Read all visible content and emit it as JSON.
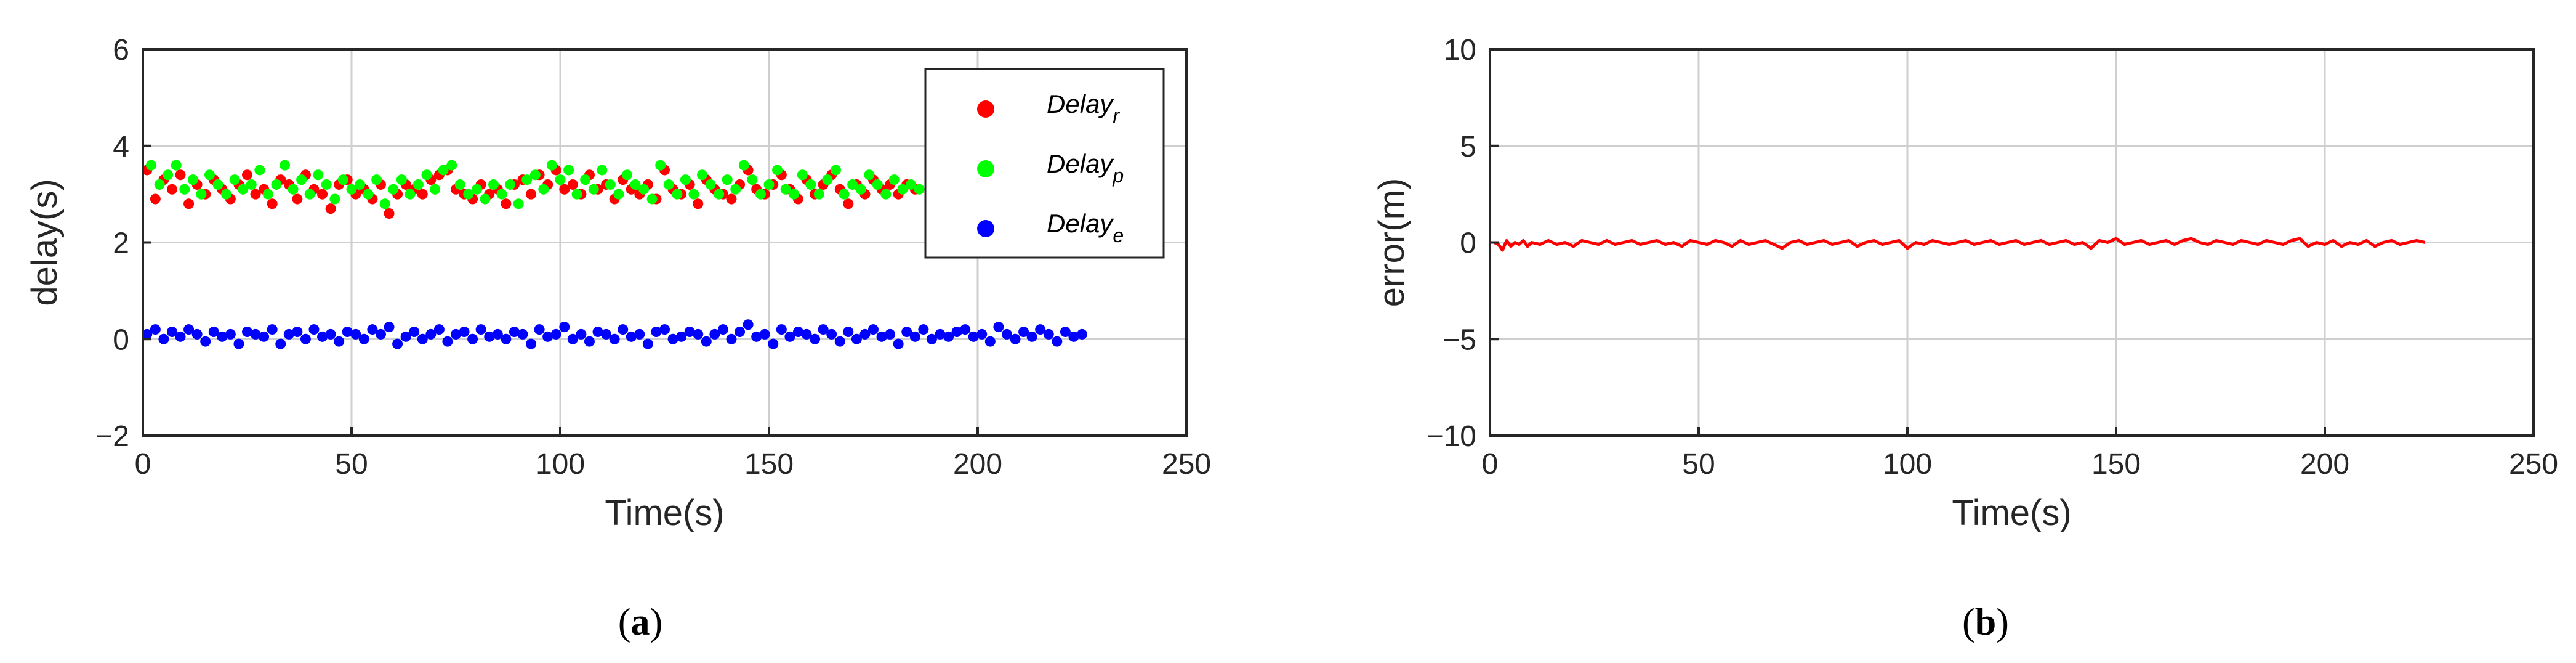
{
  "chart_data": [
    {
      "panel": "a",
      "type": "scatter",
      "xlabel": "Time(s)",
      "ylabel": "delay(s)",
      "xlim": [
        0,
        250
      ],
      "ylim": [
        -2,
        6
      ],
      "xticks": [
        0,
        50,
        100,
        150,
        200,
        250
      ],
      "yticks": [
        -2,
        0,
        2,
        4,
        6
      ],
      "grid": true,
      "legend": "top-right",
      "series": [
        {
          "name": "Delay",
          "subscript": "r",
          "color": "#ff0000",
          "x": [
            1,
            3,
            5,
            7,
            9,
            11,
            13,
            15,
            17,
            19,
            21,
            23,
            25,
            27,
            29,
            31,
            33,
            35,
            37,
            39,
            41,
            43,
            45,
            47,
            49,
            51,
            53,
            55,
            57,
            59,
            61,
            63,
            65,
            67,
            69,
            71,
            73,
            75,
            77,
            79,
            81,
            83,
            85,
            87,
            89,
            91,
            93,
            95,
            97,
            99,
            101,
            103,
            105,
            107,
            109,
            111,
            113,
            115,
            117,
            119,
            121,
            123,
            125,
            127,
            129,
            131,
            133,
            135,
            137,
            139,
            141,
            143,
            145,
            147,
            149,
            151,
            153,
            155,
            157,
            159,
            161,
            163,
            165,
            167,
            169,
            171,
            173,
            175,
            177,
            179,
            181,
            183,
            185
          ],
          "y": [
            3.5,
            2.9,
            3.3,
            3.1,
            3.4,
            2.8,
            3.2,
            3.0,
            3.3,
            3.1,
            2.9,
            3.2,
            3.4,
            3.0,
            3.1,
            2.8,
            3.3,
            3.2,
            2.9,
            3.4,
            3.1,
            3.0,
            2.7,
            3.2,
            3.3,
            3.0,
            3.1,
            2.9,
            3.2,
            2.6,
            3.0,
            3.2,
            3.1,
            3.0,
            3.3,
            3.4,
            3.5,
            3.1,
            3.0,
            2.9,
            3.2,
            3.0,
            3.1,
            2.8,
            3.2,
            3.3,
            3.0,
            3.4,
            3.2,
            3.5,
            3.1,
            3.2,
            3.0,
            3.4,
            3.1,
            3.2,
            2.9,
            3.3,
            3.1,
            3.0,
            3.2,
            2.9,
            3.5,
            3.1,
            3.0,
            3.2,
            2.8,
            3.3,
            3.1,
            3.0,
            2.9,
            3.2,
            3.5,
            3.1,
            3.0,
            3.2,
            3.4,
            3.1,
            2.9,
            3.3,
            3.0,
            3.2,
            3.4,
            3.1,
            2.8,
            3.2,
            3.0,
            3.3,
            3.1,
            3.2,
            3.0,
            3.2,
            3.1
          ]
        },
        {
          "name": "Delay",
          "subscript": "p",
          "color": "#00ff00",
          "x": [
            2,
            4,
            6,
            8,
            10,
            12,
            14,
            16,
            18,
            20,
            22,
            24,
            26,
            28,
            30,
            32,
            34,
            36,
            38,
            40,
            42,
            44,
            46,
            48,
            50,
            52,
            54,
            56,
            58,
            60,
            62,
            64,
            66,
            68,
            70,
            72,
            74,
            76,
            78,
            80,
            82,
            84,
            86,
            88,
            90,
            92,
            94,
            96,
            98,
            100,
            102,
            104,
            106,
            108,
            110,
            112,
            114,
            116,
            118,
            120,
            122,
            124,
            126,
            128,
            130,
            132,
            134,
            136,
            138,
            140,
            142,
            144,
            146,
            148,
            150,
            152,
            154,
            156,
            158,
            160,
            162,
            164,
            166,
            168,
            170,
            172,
            174,
            176,
            178,
            180,
            182,
            184,
            186
          ],
          "y": [
            3.6,
            3.2,
            3.4,
            3.6,
            3.1,
            3.3,
            3.0,
            3.4,
            3.2,
            3.0,
            3.3,
            3.1,
            3.2,
            3.5,
            3.0,
            3.2,
            3.6,
            3.1,
            3.3,
            3.0,
            3.4,
            3.2,
            2.9,
            3.3,
            3.1,
            3.2,
            3.0,
            3.3,
            2.8,
            3.1,
            3.3,
            3.0,
            3.2,
            3.4,
            3.1,
            3.5,
            3.6,
            3.2,
            3.0,
            3.1,
            2.9,
            3.2,
            3.0,
            3.2,
            2.8,
            3.3,
            3.4,
            3.1,
            3.6,
            3.3,
            3.5,
            3.0,
            3.3,
            3.1,
            3.5,
            3.2,
            3.0,
            3.4,
            3.2,
            3.1,
            2.9,
            3.6,
            3.2,
            3.0,
            3.3,
            3.0,
            3.4,
            3.2,
            3.0,
            3.3,
            3.1,
            3.6,
            3.3,
            3.0,
            3.2,
            3.5,
            3.1,
            3.0,
            3.4,
            3.2,
            3.0,
            3.3,
            3.5,
            3.0,
            3.2,
            3.1,
            3.4,
            3.2,
            3.0,
            3.3,
            3.1,
            3.2,
            3.1
          ]
        },
        {
          "name": "Delay",
          "subscript": "e",
          "color": "#0000ff",
          "x": [
            1,
            3,
            5,
            7,
            9,
            11,
            13,
            15,
            17,
            19,
            21,
            23,
            25,
            27,
            29,
            31,
            33,
            35,
            37,
            39,
            41,
            43,
            45,
            47,
            49,
            51,
            53,
            55,
            57,
            59,
            61,
            63,
            65,
            67,
            69,
            71,
            73,
            75,
            77,
            79,
            81,
            83,
            85,
            87,
            89,
            91,
            93,
            95,
            97,
            99,
            101,
            103,
            105,
            107,
            109,
            111,
            113,
            115,
            117,
            119,
            121,
            123,
            125,
            127,
            129,
            131,
            133,
            135,
            137,
            139,
            141,
            143,
            145,
            147,
            149,
            151,
            153,
            155,
            157,
            159,
            161,
            163,
            165,
            167,
            169,
            171,
            173,
            175,
            177,
            179,
            181,
            183,
            185,
            187,
            189,
            191,
            193,
            195,
            197,
            199,
            201,
            203,
            205,
            207,
            209,
            211,
            213,
            215,
            217,
            219,
            221,
            223,
            225
          ],
          "y": [
            0.1,
            0.2,
            0.0,
            0.15,
            0.05,
            0.2,
            0.1,
            -0.05,
            0.15,
            0.05,
            0.1,
            -0.1,
            0.15,
            0.1,
            0.05,
            0.2,
            -0.1,
            0.1,
            0.15,
            0.0,
            0.2,
            0.05,
            0.1,
            -0.05,
            0.15,
            0.1,
            0.0,
            0.2,
            0.1,
            0.25,
            -0.1,
            0.05,
            0.15,
            0.0,
            0.1,
            0.2,
            -0.05,
            0.1,
            0.15,
            0.0,
            0.2,
            0.05,
            0.1,
            0.0,
            0.15,
            0.1,
            -0.1,
            0.2,
            0.05,
            0.1,
            0.25,
            0.0,
            0.1,
            -0.05,
            0.15,
            0.1,
            0.0,
            0.2,
            0.05,
            0.1,
            -0.1,
            0.15,
            0.2,
            0.0,
            0.05,
            0.15,
            0.1,
            -0.05,
            0.1,
            0.2,
            0.0,
            0.15,
            0.3,
            0.05,
            0.1,
            -0.1,
            0.2,
            0.05,
            0.15,
            0.1,
            0.0,
            0.2,
            0.1,
            -0.05,
            0.15,
            0.0,
            0.1,
            0.2,
            0.05,
            0.1,
            -0.1,
            0.15,
            0.05,
            0.2,
            0.0,
            0.1,
            0.05,
            0.15,
            0.2,
            0.05,
            0.1,
            -0.05,
            0.25,
            0.1,
            0.0,
            0.15,
            0.05,
            0.2,
            0.1,
            -0.05,
            0.15,
            0.05,
            0.1
          ]
        }
      ]
    },
    {
      "panel": "b",
      "type": "line",
      "xlabel": "Time(s)",
      "ylabel": "error(m)",
      "xlim": [
        0,
        250
      ],
      "ylim": [
        -10,
        10
      ],
      "xticks": [
        0,
        50,
        100,
        150,
        200,
        250
      ],
      "yticks": [
        -10,
        -5,
        0,
        5,
        10
      ],
      "grid": true,
      "series": [
        {
          "color": "#ff0000",
          "x": [
            1,
            2,
            3,
            4,
            5,
            6,
            7,
            8,
            9,
            10,
            12,
            14,
            16,
            18,
            20,
            22,
            24,
            26,
            28,
            30,
            32,
            34,
            36,
            38,
            40,
            42,
            44,
            46,
            48,
            50,
            52,
            54,
            56,
            58,
            60,
            62,
            64,
            66,
            68,
            70,
            72,
            74,
            76,
            78,
            80,
            82,
            84,
            86,
            88,
            90,
            92,
            94,
            96,
            98,
            100,
            102,
            104,
            106,
            108,
            110,
            112,
            114,
            116,
            118,
            120,
            122,
            124,
            126,
            128,
            130,
            132,
            134,
            136,
            138,
            140,
            142,
            144,
            146,
            148,
            150,
            152,
            154,
            156,
            158,
            160,
            162,
            164,
            166,
            168,
            170,
            172,
            174,
            176,
            178,
            180,
            182,
            184,
            186,
            188,
            190,
            192,
            194,
            196,
            198,
            200,
            202,
            204,
            206,
            208,
            210,
            212,
            214,
            216,
            218,
            220,
            222,
            224
          ],
          "y": [
            0.0,
            -0.1,
            -0.4,
            0.1,
            -0.2,
            0.0,
            -0.1,
            0.1,
            -0.2,
            0.0,
            -0.1,
            0.1,
            -0.1,
            0.0,
            -0.2,
            0.1,
            0.0,
            -0.1,
            0.1,
            -0.1,
            0.0,
            0.1,
            -0.1,
            0.0,
            0.1,
            -0.1,
            0.0,
            -0.2,
            0.1,
            0.0,
            -0.1,
            0.1,
            0.0,
            -0.2,
            0.1,
            -0.1,
            0.0,
            0.1,
            -0.1,
            -0.3,
            0.0,
            0.1,
            -0.1,
            0.0,
            0.1,
            -0.1,
            0.0,
            0.1,
            -0.2,
            0.0,
            0.1,
            -0.1,
            0.0,
            0.1,
            -0.3,
            0.0,
            -0.1,
            0.1,
            0.0,
            -0.1,
            0.0,
            0.1,
            -0.1,
            0.0,
            0.1,
            -0.1,
            0.0,
            0.1,
            -0.1,
            0.0,
            0.1,
            -0.1,
            0.0,
            0.1,
            -0.1,
            0.0,
            -0.3,
            0.1,
            0.0,
            0.2,
            -0.1,
            0.0,
            0.1,
            -0.1,
            0.0,
            0.1,
            -0.1,
            0.1,
            0.2,
            0.0,
            -0.1,
            0.1,
            0.0,
            -0.1,
            0.1,
            0.0,
            -0.1,
            0.1,
            0.0,
            -0.1,
            0.1,
            0.2,
            -0.2,
            0.0,
            -0.1,
            0.1,
            -0.2,
            0.0,
            -0.1,
            0.1,
            -0.2,
            0.0,
            0.1,
            -0.1,
            0.0,
            0.1,
            0.0
          ]
        }
      ]
    }
  ],
  "captions": [
    {
      "open": "(",
      "letter": "a",
      "close": ")"
    },
    {
      "open": "(",
      "letter": "b",
      "close": ")"
    }
  ]
}
